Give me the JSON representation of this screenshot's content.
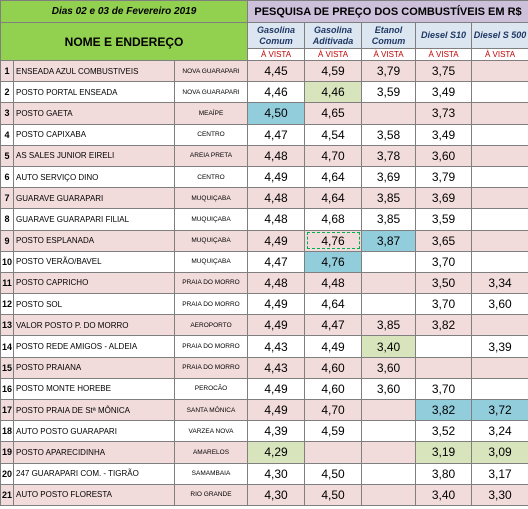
{
  "header": {
    "date": "Dias 02 e 03 de  Fevereiro 2019",
    "title": "PESQUISA DE PREÇO DOS COMBUSTÍVEIS EM R$",
    "name_header": "NOME E ENDEREÇO",
    "columns": [
      {
        "line1": "Gasolina",
        "line2": "Comum"
      },
      {
        "line1": "Gasolina",
        "line2": "Aditivada"
      },
      {
        "line1": "Etanol",
        "line2": "Comum"
      },
      {
        "line1": "Diesel S10",
        "line2": ""
      },
      {
        "line1": "Diesel S 500",
        "line2": ""
      }
    ],
    "payment": [
      "À VISTA",
      "À VISTA",
      "À VISTA",
      "À VISTA",
      "À VISTA"
    ]
  },
  "colors": {
    "green_header": "#92d050",
    "purple_header": "#ccc0da",
    "pink_row": "#f2dcdb",
    "blue_highlight": "#92cddc",
    "green_highlight": "#d8e4bc"
  },
  "rows": [
    {
      "n": "1",
      "name": "ENSEADA AZUL COMBUSTIVEIS",
      "loc": "NOVA GUARAPARI",
      "p": [
        "4,45",
        "4,59",
        "3,79",
        "3,75",
        ""
      ]
    },
    {
      "n": "2",
      "name": "POSTO PORTAL ENSEADA",
      "loc": "NOVA GUARAPARI",
      "p": [
        "4,46",
        "4,46",
        "3,59",
        "3,49",
        ""
      ]
    },
    {
      "n": "3",
      "name": "POSTO GAETA",
      "loc": "MEAÍPE",
      "p": [
        "4,50",
        "4,65",
        "",
        "3,73",
        ""
      ]
    },
    {
      "n": "4",
      "name": "POSTO CAPIXABA",
      "loc": "CENTRO",
      "p": [
        "4,47",
        "4,54",
        "3,58",
        "3,49",
        ""
      ]
    },
    {
      "n": "5",
      "name": "AS SALES JUNIOR EIRELI",
      "loc": "AREIA PRETA",
      "p": [
        "4,48",
        "4,70",
        "3,78",
        "3,60",
        ""
      ]
    },
    {
      "n": "6",
      "name": "AUTO SERVIÇO DINO",
      "loc": "CENTRO",
      "p": [
        "4,49",
        "4,64",
        "3,69",
        "3,79",
        ""
      ]
    },
    {
      "n": "7",
      "name": "GUARAVE  GUARAPARI",
      "loc": "MUQUIÇABA",
      "p": [
        "4,48",
        "4,64",
        "3,85",
        "3,69",
        ""
      ]
    },
    {
      "n": "8",
      "name": "GUARAVE  GUARAPARI FILIAL",
      "loc": "MUQUIÇABA",
      "p": [
        "4,48",
        "4,68",
        "3,85",
        "3,59",
        ""
      ]
    },
    {
      "n": "9",
      "name": "POSTO ESPLANADA",
      "loc": "MUQUIÇABA",
      "p": [
        "4,49",
        "4,76",
        "3,87",
        "3,65",
        ""
      ]
    },
    {
      "n": "10",
      "name": "POSTO VERÃO/BAVEL",
      "loc": "MUQUIÇABA",
      "p": [
        "4,47",
        "4,76",
        "",
        "3,70",
        ""
      ]
    },
    {
      "n": "11",
      "name": "POSTO CAPRICHO",
      "loc": "PRAIA DO MORRO",
      "p": [
        "4,48",
        "4,48",
        "",
        "3,50",
        "3,34"
      ]
    },
    {
      "n": "12",
      "name": "POSTO SOL",
      "loc": "PRAIA DO MORRO",
      "p": [
        "4,49",
        "4,64",
        "",
        "3,70",
        "3,60"
      ]
    },
    {
      "n": "13",
      "name": "VALOR POSTO P. DO MORRO",
      "loc": "AEROPORTO",
      "p": [
        "4,49",
        "4,47",
        "3,85",
        "3,82",
        ""
      ]
    },
    {
      "n": "14",
      "name": "POSTO REDE AMIGOS  - ALDEIA",
      "loc": "PRAIA DO MORRO",
      "p": [
        "4,43",
        "4,49",
        "3,40",
        "",
        "3,39"
      ]
    },
    {
      "n": "15",
      "name": "POSTO PRAIANA",
      "loc": "PRAIA DO MORRO",
      "p": [
        "4,43",
        "4,60",
        "3,60",
        "",
        ""
      ]
    },
    {
      "n": "16",
      "name": "POSTO MONTE HOREBE",
      "loc": "PEROCÃO",
      "p": [
        "4,49",
        "4,60",
        "3,60",
        "3,70",
        ""
      ]
    },
    {
      "n": "17",
      "name": "POSTO PRAIA DE Stª MÔNICA",
      "loc": "SANTA MÔNICA",
      "p": [
        "4,49",
        "4,70",
        "",
        "3,82",
        "3,72"
      ]
    },
    {
      "n": "18",
      "name": "AUTO POSTO GUARAPARI",
      "loc": "VARZEA NOVA",
      "p": [
        "4,39",
        "4,59",
        "",
        "3,52",
        "3,24"
      ]
    },
    {
      "n": "19",
      "name": "POSTO APARECIDINHA",
      "loc": "AMARELOS",
      "p": [
        "4,29",
        "",
        "",
        "3,19",
        "3,09"
      ]
    },
    {
      "n": "20",
      "name": "247 GUARAPARI COM. - TIGRÃO",
      "loc": "SAMAMBAIA",
      "p": [
        "4,30",
        "4,50",
        "",
        "3,80",
        "3,17"
      ]
    },
    {
      "n": "21",
      "name": "AUTO POSTO FLORESTA",
      "loc": "RIO GRANDE",
      "p": [
        "4,30",
        "4,50",
        "",
        "3,40",
        "3,30"
      ]
    }
  ],
  "highlights": [
    {
      "row": 2,
      "col": 1,
      "style": "green"
    },
    {
      "row": 3,
      "col": 0,
      "style": "blue"
    },
    {
      "row": 9,
      "col": 1,
      "style": "dash"
    },
    {
      "row": 9,
      "col": 2,
      "style": "blue"
    },
    {
      "row": 10,
      "col": 1,
      "style": "blue"
    },
    {
      "row": 14,
      "col": 2,
      "style": "green"
    },
    {
      "row": 17,
      "col": 3,
      "style": "blue"
    },
    {
      "row": 17,
      "col": 4,
      "style": "blue"
    },
    {
      "row": 19,
      "col": 0,
      "style": "green"
    },
    {
      "row": 19,
      "col": 3,
      "style": "green"
    },
    {
      "row": 19,
      "col": 4,
      "style": "green"
    }
  ]
}
